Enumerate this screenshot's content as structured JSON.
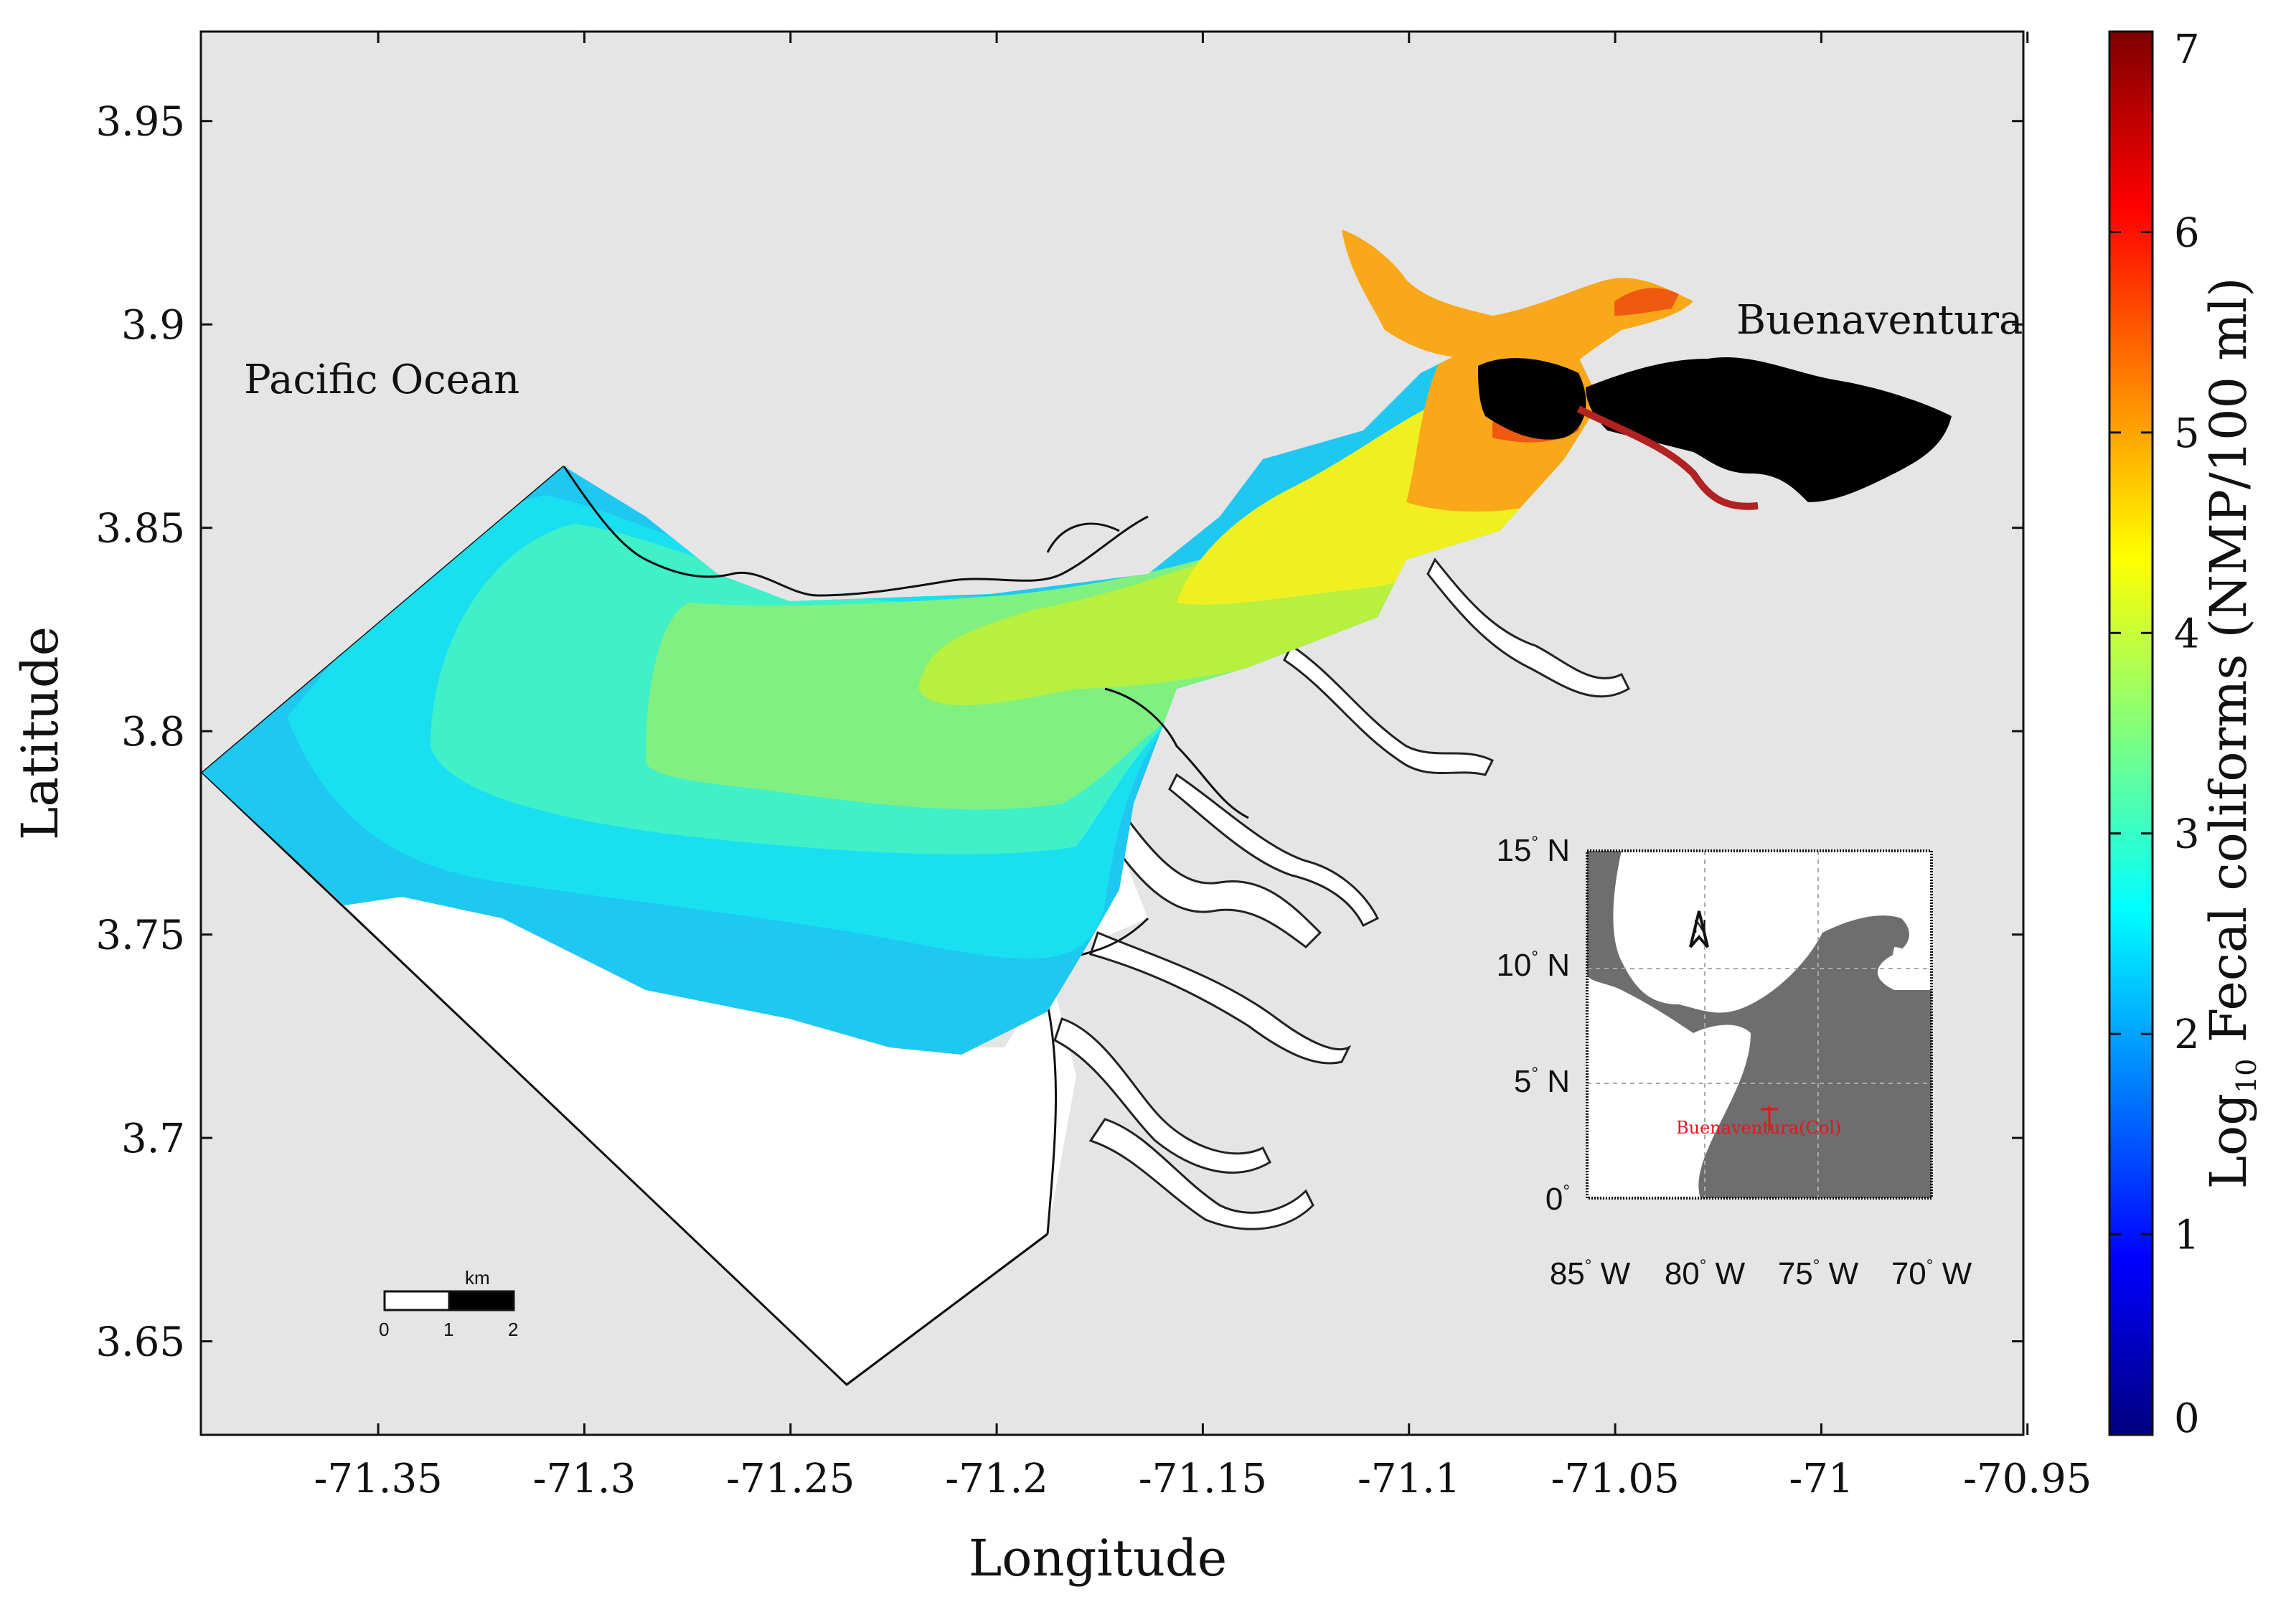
{
  "map": {
    "xlabel": "Longitude",
    "ylabel": "Latitude",
    "lon_range": [
      -71.393,
      -70.951
    ],
    "lat_range": [
      3.627,
      3.972
    ],
    "x_ticks": [
      "-71.35",
      "-71.3",
      "-71.25",
      "-71.2",
      "-71.15",
      "-71.1",
      "-71.05",
      "-71",
      "-70.95"
    ],
    "y_ticks": [
      "3.95",
      "3.9",
      "3.85",
      "3.8",
      "3.75",
      "3.7",
      "3.65"
    ],
    "labels": {
      "ocean": "Pacific Ocean",
      "city": "Buenaventura"
    },
    "colors": {
      "land": "#e5e5e5",
      "outside": "#ffffff",
      "urban": "#000000",
      "canal": "#b22222"
    },
    "plume_zones": [
      {
        "level": 2.2,
        "color": "#1ec8f0"
      },
      {
        "level": 2.6,
        "color": "#18e0f0"
      },
      {
        "level": 3.0,
        "color": "#40f0c8"
      },
      {
        "level": 3.5,
        "color": "#80f080"
      },
      {
        "level": 3.9,
        "color": "#b8f040"
      },
      {
        "level": 4.3,
        "color": "#f0f020"
      },
      {
        "level": 4.8,
        "color": "#f8a818"
      },
      {
        "level": 5.6,
        "color": "#f05a10"
      }
    ]
  },
  "colorbar": {
    "label_prefix": "Log",
    "label_sub": "10",
    "label_rest": " Fecal coliforms (NMP/100 ml)",
    "range": [
      0,
      7
    ],
    "ticks": [
      "0",
      "1",
      "2",
      "3",
      "4",
      "5",
      "6",
      "7"
    ],
    "colormap": "jet"
  },
  "scale_bar": {
    "unit": "km",
    "ticks": [
      "0",
      "1",
      "2"
    ]
  },
  "inset": {
    "y_ticks": [
      "15",
      "10",
      "5",
      "0"
    ],
    "y_suffix": " N",
    "x_ticks": [
      "85",
      "80",
      "75",
      "70"
    ],
    "x_suffix": " W",
    "degree": "°",
    "city_marker": "Buenaventura(Col)",
    "north_label": "N",
    "colors": {
      "land": "#6e6e6e",
      "sea": "#ffffff",
      "marker": "#e8141e"
    }
  }
}
